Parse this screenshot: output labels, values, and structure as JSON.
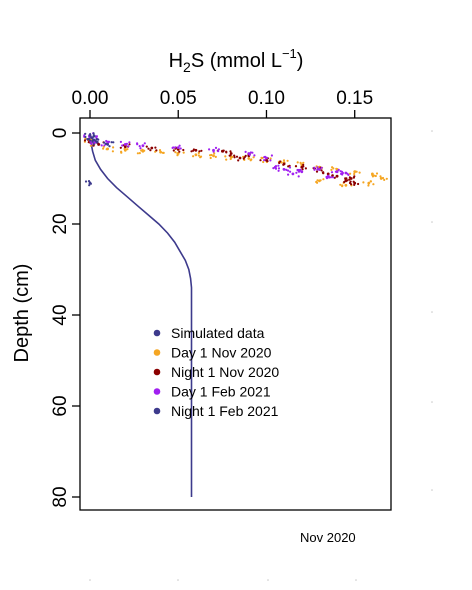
{
  "chart_data": {
    "type": "scatter",
    "title": "",
    "xlabel_main": "H",
    "xlabel_sub": "2",
    "xlabel_rest": "S (mmol L",
    "xlabel_sup": "−1",
    "xlabel_close": ")",
    "ylabel": "Depth (cm)",
    "x_axis_position": "top",
    "y_axis_reversed": true,
    "xlim": [
      0,
      0.17
    ],
    "ylim": [
      0,
      82
    ],
    "x_ticks": [
      0.0,
      0.05,
      0.1,
      0.15
    ],
    "x_tick_labels": [
      "0.00",
      "0.05",
      "0.10",
      "0.15"
    ],
    "y_ticks": [
      0,
      20,
      40,
      60,
      80
    ],
    "y_tick_labels": [
      "0",
      "20",
      "40",
      "60",
      "80"
    ],
    "grid": false,
    "legend_position": "center",
    "series": [
      {
        "name": "Simulated data",
        "color": "#3d3a8c",
        "kind": "line",
        "x": [
          0.0,
          0.0005,
          0.0015,
          0.003,
          0.006,
          0.01,
          0.015,
          0.021,
          0.027,
          0.033,
          0.039,
          0.044,
          0.048,
          0.051,
          0.054,
          0.056,
          0.057,
          0.0575,
          0.0575,
          0.0575,
          0.0575,
          0.0575
        ],
        "y": [
          0,
          2,
          4,
          6,
          8,
          10,
          12,
          14,
          16,
          18,
          20,
          22,
          24,
          26,
          28,
          30,
          32,
          34,
          40,
          50,
          65,
          80
        ]
      },
      {
        "name": "Day 1 Nov 2020",
        "color": "#f5a623",
        "kind": "points",
        "x": [
          0.0,
          0.002,
          0.01,
          0.02,
          0.03,
          0.04,
          0.05,
          0.06,
          0.07,
          0.08,
          0.09,
          0.1,
          0.11,
          0.12,
          0.13,
          0.14,
          0.15,
          0.16,
          0.165,
          0.158,
          0.145,
          0.13
        ],
        "y": [
          1.5,
          2.5,
          3.5,
          3.8,
          4.0,
          4.2,
          4.5,
          4.8,
          5.0,
          5.3,
          5.6,
          6.0,
          6.5,
          7.0,
          7.5,
          8.0,
          8.5,
          9.0,
          10.0,
          11.0,
          11.5,
          10.5
        ]
      },
      {
        "name": "Night 1 Nov 2020",
        "color": "#8b0000",
        "kind": "points",
        "x": [
          0.0,
          0.005,
          0.02,
          0.035,
          0.05,
          0.06,
          0.075,
          0.08,
          0.085,
          0.09,
          0.1,
          0.11,
          0.12,
          0.13,
          0.135,
          0.14,
          0.145,
          0.15,
          0.148
        ],
        "y": [
          2.0,
          2.5,
          3.0,
          3.3,
          3.6,
          3.8,
          4.0,
          4.5,
          5.5,
          5.0,
          6.0,
          6.8,
          7.5,
          8.0,
          9.0,
          9.5,
          10.5,
          11.0,
          10.0
        ]
      },
      {
        "name": "Day 1 Feb 2021",
        "color": "#a020f0",
        "kind": "points",
        "x": [
          0.0,
          0.001,
          0.003,
          0.01,
          0.02,
          0.03,
          0.05,
          0.07,
          0.09,
          0.1,
          0.105,
          0.11,
          0.12,
          0.13,
          0.14,
          0.145,
          0.135,
          0.115
        ],
        "y": [
          0.5,
          1.0,
          2.0,
          2.2,
          2.5,
          2.8,
          3.2,
          3.8,
          4.5,
          5.5,
          7.5,
          8.0,
          8.5,
          8.0,
          8.5,
          8.8,
          9.5,
          9.0
        ]
      },
      {
        "name": "Night 1 Feb 2021",
        "color": "#3d3a8c",
        "kind": "points",
        "x": [
          0.0,
          0.001,
          0.002,
          0.004,
          0.01,
          0.0
        ],
        "y": [
          0.5,
          1.0,
          1.5,
          2.0,
          2.5,
          11.0
        ]
      }
    ],
    "caption": "Nov 2020"
  }
}
